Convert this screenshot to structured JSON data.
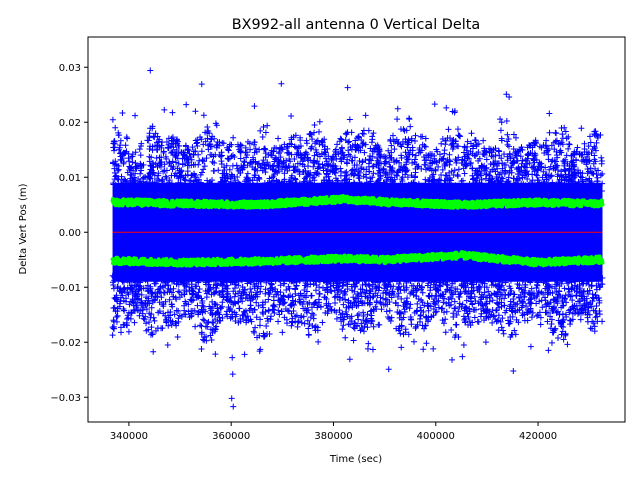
{
  "chart_data": {
    "type": "scatter",
    "title": "BX992-all antenna 0 Vertical Delta",
    "xlabel": "Time (sec)",
    "ylabel": "Delta Vert Pos (m)",
    "xlim": [
      332000,
      437000
    ],
    "ylim": [
      -0.0345,
      0.0355
    ],
    "x_ticks": [
      340000,
      360000,
      380000,
      400000,
      420000
    ],
    "x_tick_labels": [
      "340000",
      "360000",
      "380000",
      "400000",
      "420000"
    ],
    "y_ticks": [
      -0.03,
      -0.02,
      -0.01,
      0.0,
      0.01,
      0.02,
      0.03
    ],
    "y_tick_labels": [
      "−0.03",
      "−0.02",
      "−0.01",
      "0.00",
      "0.01",
      "0.02",
      "0.03"
    ],
    "grid": false,
    "legend": "none",
    "data_range_x": [
      336800,
      432600
    ],
    "series": [
      {
        "marker": "+",
        "color": "#0000ff",
        "outliers": [
          [
            369800,
            0.027
          ],
          [
            351200,
            0.0232
          ],
          [
            399800,
            0.0233
          ],
          [
            353000,
            0.022
          ],
          [
            341200,
            0.0212
          ],
          [
            376300,
            0.0195
          ],
          [
            383200,
            0.0205
          ],
          [
            395000,
            0.0192
          ],
          [
            431000,
            0.0183
          ],
          [
            360200,
            -0.0228
          ],
          [
            360300,
            -0.0258
          ],
          [
            360100,
            -0.0302
          ],
          [
            360400,
            -0.0317
          ],
          [
            390800,
            -0.0249
          ],
          [
            383200,
            -0.0231
          ],
          [
            347600,
            -0.0205
          ],
          [
            399500,
            -0.0212
          ],
          [
            405500,
            -0.0205
          ],
          [
            418600,
            -0.0208
          ],
          [
            340000,
            -0.0181
          ],
          [
            367500,
            -0.0185
          ],
          [
            370000,
            -0.0182
          ],
          [
            425000,
            -0.0195
          ],
          [
            412300,
            -0.0178
          ]
        ]
      },
      {
        "marker": ".",
        "color": "#00ff00",
        "upper_band": [
          [
            337000,
            0.0055
          ],
          [
            350000,
            0.0052
          ],
          [
            365000,
            0.005
          ],
          [
            382000,
            0.006
          ],
          [
            390000,
            0.0055
          ],
          [
            405000,
            0.005
          ],
          [
            420000,
            0.0054
          ],
          [
            432000,
            0.0052
          ]
        ],
        "lower_band": [
          [
            337000,
            -0.0052
          ],
          [
            350000,
            -0.0055
          ],
          [
            365000,
            -0.0053
          ],
          [
            382000,
            -0.0048
          ],
          [
            390000,
            -0.005
          ],
          [
            405000,
            -0.0042
          ],
          [
            420000,
            -0.0055
          ],
          [
            432000,
            -0.005
          ]
        ]
      },
      {
        "marker": "line",
        "color": "#ff0000",
        "x": [
          336800,
          432600
        ],
        "y": [
          0.0,
          0.0
        ]
      }
    ]
  }
}
